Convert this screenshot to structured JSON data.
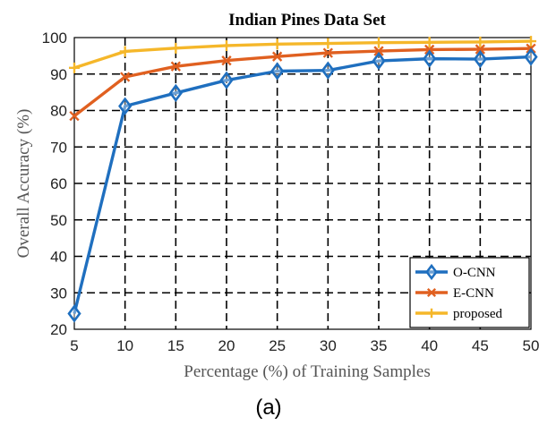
{
  "chart_data": {
    "type": "line",
    "title": "Indian Pines Data Set",
    "xlabel": "Percentage (%) of Training Samples",
    "ylabel": "Overall Accuracy (%)",
    "x": [
      5,
      10,
      15,
      20,
      25,
      30,
      35,
      40,
      45,
      50
    ],
    "xlim": [
      5,
      50
    ],
    "ylim": [
      20,
      100
    ],
    "xticks": [
      "5",
      "10",
      "15",
      "20",
      "25",
      "30",
      "35",
      "40",
      "45",
      "50"
    ],
    "yticks": [
      "20",
      "30",
      "40",
      "50",
      "60",
      "70",
      "80",
      "90",
      "100"
    ],
    "grid": true,
    "grid_style": "dashed",
    "legend_position": "bottom-right",
    "series": [
      {
        "name": "O-CNN",
        "color": "#1f6fbf",
        "marker": "diamond",
        "values": [
          24.3,
          81.2,
          84.8,
          88.3,
          90.8,
          91.0,
          93.6,
          94.2,
          94.1,
          94.7
        ]
      },
      {
        "name": "E-CNN",
        "color": "#e06020",
        "marker": "x",
        "values": [
          78.5,
          89.2,
          92.1,
          93.7,
          94.8,
          95.8,
          96.3,
          96.7,
          96.8,
          97.0
        ]
      },
      {
        "name": "proposed",
        "color": "#f5b72a",
        "marker": "plus",
        "values": [
          91.7,
          96.2,
          97.1,
          97.8,
          98.2,
          98.4,
          98.6,
          98.7,
          98.8,
          99.0
        ]
      }
    ]
  },
  "caption": "(a)"
}
